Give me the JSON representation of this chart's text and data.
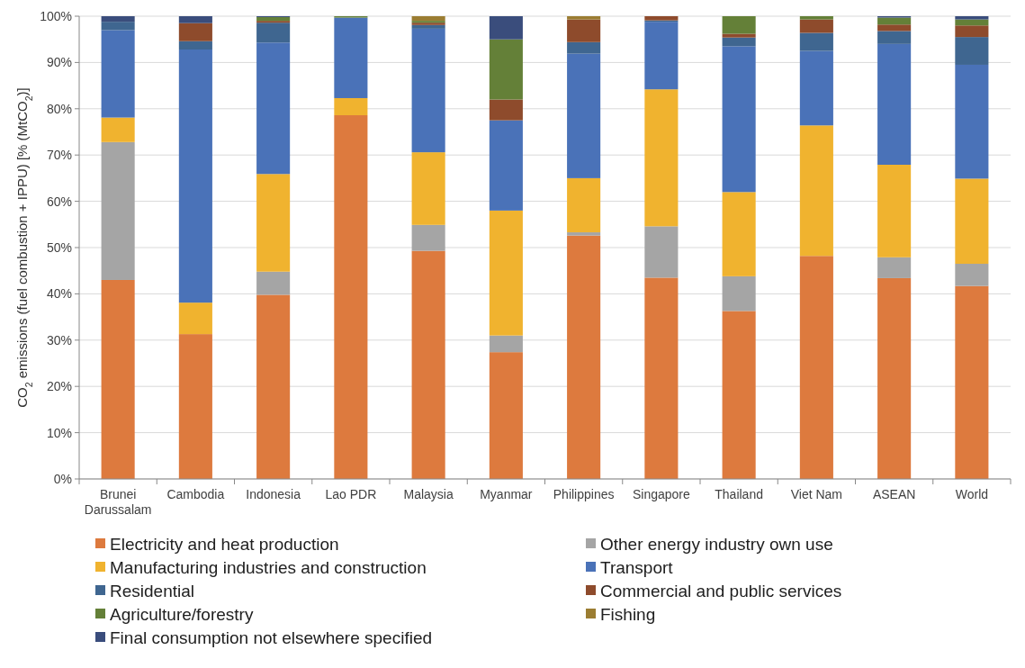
{
  "chart_data": {
    "type": "bar",
    "stacked": true,
    "ylabel": "CO$_{2}$ emissions (fuel combustion + IPPU) [% (MtCO$_{2}$)]",
    "categories": [
      "Brunei Darussalam",
      "Cambodia",
      "Indonesia",
      "Lao PDR",
      "Malaysia",
      "Myanmar",
      "Philippines",
      "Singapore",
      "Thailand",
      "Viet Nam",
      "ASEAN",
      "World"
    ],
    "series": [
      {
        "name": "Electricity and heat production",
        "color": "#dd7a3e",
        "values": [
          43.0,
          31.3,
          39.8,
          78.6,
          49.3,
          27.4,
          52.6,
          43.5,
          36.3,
          48.2,
          43.4,
          41.7
        ]
      },
      {
        "name": "Other energy industry own use",
        "color": "#a5a5a5",
        "values": [
          29.8,
          0,
          5.0,
          0,
          5.6,
          3.6,
          0.7,
          11.1,
          7.5,
          0,
          4.5,
          4.8
        ]
      },
      {
        "name": "Manufacturing industries and construction",
        "color": "#f0b32f",
        "values": [
          5.3,
          6.8,
          21.1,
          3.7,
          15.7,
          27.0,
          11.7,
          29.6,
          18.2,
          28.2,
          20.0,
          18.4
        ]
      },
      {
        "name": "Transport",
        "color": "#4a72b8",
        "values": [
          18.9,
          54.7,
          28.4,
          17.4,
          26.7,
          19.5,
          26.9,
          14.6,
          31.5,
          16.1,
          26.1,
          24.6
        ]
      },
      {
        "name": "Residential",
        "color": "#3f6690",
        "values": [
          1.8,
          1.8,
          4.3,
          0,
          0.8,
          0,
          2.5,
          0.3,
          1.9,
          3.9,
          2.8,
          6.0
        ]
      },
      {
        "name": "Commercial and public services",
        "color": "#8e4b2c",
        "values": [
          0,
          3.9,
          0.4,
          0,
          0.5,
          4.5,
          4.9,
          0.9,
          0.8,
          2.9,
          1.4,
          2.5
        ]
      },
      {
        "name": "Agriculture/forestry",
        "color": "#648038",
        "values": [
          0,
          0,
          0.8,
          0.3,
          0.4,
          13.0,
          0,
          0,
          3.8,
          0.7,
          1.5,
          1.3
        ]
      },
      {
        "name": "Fishing",
        "color": "#9b7d32",
        "values": [
          0,
          0,
          0,
          0,
          1.0,
          0,
          0.7,
          0,
          0,
          0,
          0,
          0
        ]
      },
      {
        "name": "Final consumption not elsewhere specified",
        "color": "#3a4d7c",
        "values": [
          1.2,
          1.5,
          0.2,
          0,
          0,
          5.0,
          0,
          0,
          0,
          0,
          0.3,
          0.7
        ]
      }
    ],
    "ylim": [
      0,
      100
    ],
    "yticks": [
      {
        "value": 0,
        "label": "0%"
      },
      {
        "value": 10,
        "label": "10%"
      },
      {
        "value": 20,
        "label": "20%"
      },
      {
        "value": 30,
        "label": "30%"
      },
      {
        "value": 40,
        "label": "40%"
      },
      {
        "value": 50,
        "label": "50%"
      },
      {
        "value": 60,
        "label": "60%"
      },
      {
        "value": 70,
        "label": "70%"
      },
      {
        "value": 80,
        "label": "80%"
      },
      {
        "value": 90,
        "label": "90%"
      },
      {
        "value": 100,
        "label": "100%"
      }
    ],
    "grid": "y",
    "legend": "bottom"
  }
}
